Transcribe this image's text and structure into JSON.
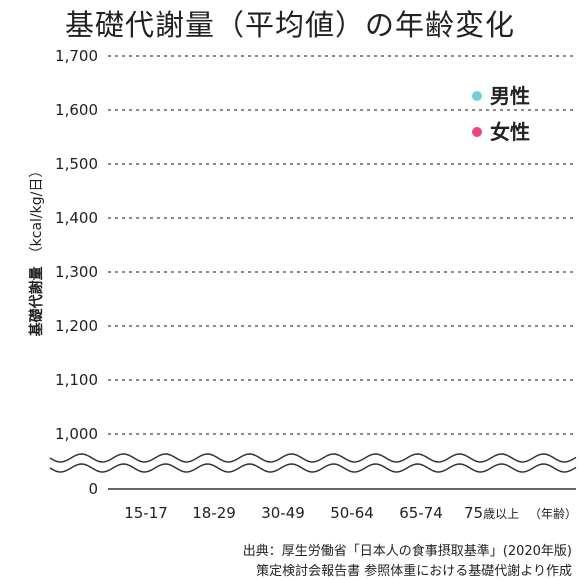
{
  "chart_data": {
    "type": "scatter",
    "title": "基礎代謝量（平均値）の年齢変化",
    "ylabel": "基礎代謝量",
    "ylabel_unit": "（kcal/kg/日）",
    "xlabel_unit": "（年齢）",
    "x_unit_suffix": "歳以上",
    "categories": [
      "15-17",
      "18-29",
      "30-49",
      "50-64",
      "65-74",
      "75"
    ],
    "yticks": [
      "1,700",
      "1,600",
      "1,500",
      "1,400",
      "1,300",
      "1,200",
      "1,100",
      "1,000",
      "0"
    ],
    "ylim": [
      1000,
      1700
    ],
    "axis_break": true,
    "grid": true,
    "legend_position": "top-right",
    "series": [
      {
        "name": "男性",
        "color": "#74cfd4",
        "values": []
      },
      {
        "name": "女性",
        "color": "#e8497a",
        "values": []
      }
    ],
    "source_line1": "出典：厚生労働省「日本人の食事摂取基準」(2020年版)",
    "source_line2": "策定検討会報告書 参照体重における基礎代謝より作成"
  }
}
